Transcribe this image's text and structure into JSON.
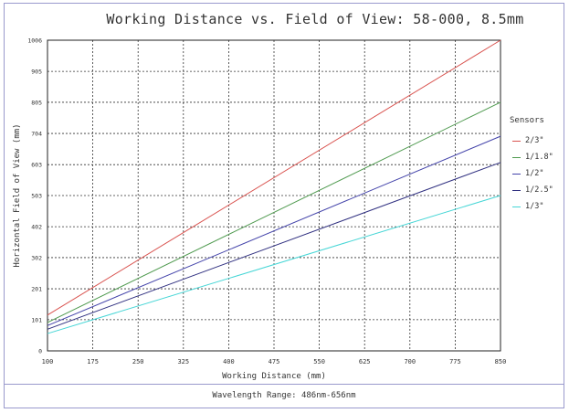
{
  "footer": "Wavelength Range: 486nm-656nm",
  "chart_data": {
    "type": "line",
    "title": "Working Distance vs. Field of View: 58-000, 8.5mm",
    "xlabel": "Working Distance (mm)",
    "ylabel": "Horizontal Field of View (mm)",
    "xlim": [
      100,
      850
    ],
    "ylim": [
      0,
      1006
    ],
    "x_ticks": [
      100,
      175,
      250,
      325,
      400,
      475,
      550,
      625,
      700,
      775,
      850
    ],
    "y_ticks": [
      0,
      101,
      201,
      302,
      402,
      503,
      603,
      704,
      805,
      905,
      1006
    ],
    "grid": true,
    "legend_title": "Sensors",
    "legend_position": "right",
    "series": [
      {
        "name": "2/3\"",
        "color": "#d9534f",
        "x": [
          100,
          850
        ],
        "y": [
          116,
          1006
        ]
      },
      {
        "name": "1/1.8\"",
        "color": "#4f9a4f",
        "x": [
          100,
          850
        ],
        "y": [
          92,
          805
        ]
      },
      {
        "name": "1/2\"",
        "color": "#4444aa",
        "x": [
          100,
          850
        ],
        "y": [
          82,
          695
        ]
      },
      {
        "name": "1/2.5\"",
        "color": "#303080",
        "x": [
          100,
          850
        ],
        "y": [
          70,
          610
        ]
      },
      {
        "name": "1/3\"",
        "color": "#46d6d6",
        "x": [
          100,
          850
        ],
        "y": [
          56,
          503
        ]
      }
    ]
  }
}
